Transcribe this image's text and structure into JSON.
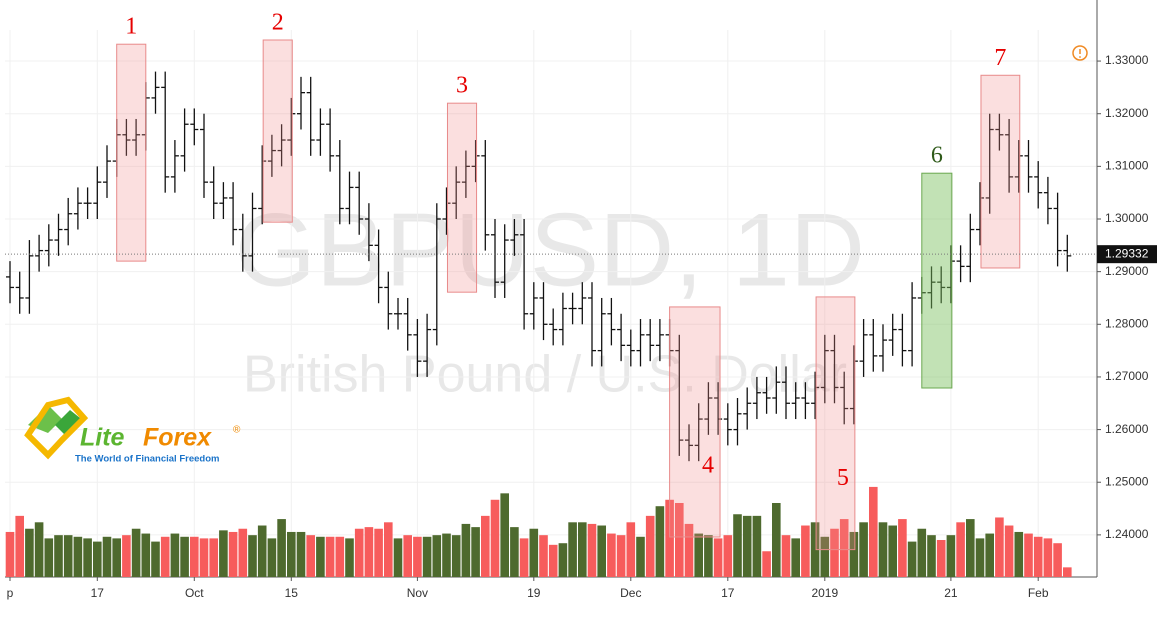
{
  "chart_data": {
    "type": "ohlc",
    "title": "GBPUSD, 1D",
    "subtitle": "British Pound / U.S. Dollar",
    "categories": [
      "p",
      null,
      null,
      null,
      null,
      null,
      null,
      null,
      null,
      "17",
      null,
      null,
      null,
      null,
      null,
      null,
      null,
      null,
      null,
      "Oct",
      null,
      null,
      null,
      null,
      null,
      null,
      null,
      null,
      null,
      "15",
      null,
      null,
      null,
      null,
      null,
      null,
      null,
      null,
      null,
      null,
      null,
      null,
      "Nov",
      null,
      null,
      null,
      null,
      null,
      null,
      null,
      null,
      null,
      null,
      null,
      "19",
      null,
      null,
      null,
      null,
      null,
      null,
      null,
      null,
      null,
      "Dec",
      null,
      null,
      null,
      null,
      null,
      null,
      null,
      null,
      null,
      "17",
      null,
      null,
      null,
      null,
      null,
      null,
      null,
      null,
      null,
      "2019",
      null,
      null,
      null,
      null,
      null,
      null,
      null,
      null,
      null,
      null,
      null,
      null,
      "21",
      null,
      null,
      null,
      null,
      null,
      null,
      null,
      null,
      "Feb",
      null,
      null,
      null
    ],
    "open": [
      1.289,
      1.287,
      1.285,
      1.293,
      1.294,
      1.296,
      1.298,
      1.301,
      1.303,
      1.303,
      1.307,
      1.311,
      1.316,
      1.315,
      1.316,
      1.323,
      1.325,
      1.308,
      1.312,
      1.318,
      1.317,
      1.307,
      1.303,
      1.304,
      1.298,
      1.293,
      1.302,
      1.311,
      1.313,
      1.315,
      1.32,
      1.324,
      1.315,
      1.318,
      1.312,
      1.302,
      1.306,
      1.3,
      1.295,
      1.287,
      1.282,
      1.282,
      1.278,
      1.273,
      1.279,
      1.3,
      1.303,
      1.307,
      1.31,
      1.312,
      1.297,
      1.288,
      1.296,
      1.297,
      1.282,
      1.285,
      1.28,
      1.279,
      1.283,
      1.283,
      1.285,
      1.275,
      1.282,
      1.279,
      1.276,
      1.275,
      1.278,
      1.276,
      1.278,
      1.275,
      1.258,
      1.257,
      1.262,
      1.266,
      1.262,
      1.26,
      1.263,
      1.265,
      1.267,
      1.266,
      1.269,
      1.265,
      1.266,
      1.265,
      1.268,
      1.275,
      1.268,
      1.264,
      1.273,
      1.278,
      1.274,
      1.277,
      1.279,
      1.275,
      1.285,
      1.286,
      1.288,
      1.287,
      1.292,
      1.291,
      1.298,
      1.304,
      1.317,
      1.316,
      1.308,
      1.312,
      1.308,
      1.305,
      1.302,
      1.294
    ],
    "high": [
      1.292,
      1.29,
      1.296,
      1.297,
      1.299,
      1.301,
      1.304,
      1.306,
      1.306,
      1.31,
      1.314,
      1.319,
      1.319,
      1.319,
      1.326,
      1.328,
      1.328,
      1.315,
      1.321,
      1.321,
      1.32,
      1.31,
      1.307,
      1.307,
      1.301,
      1.305,
      1.314,
      1.316,
      1.318,
      1.323,
      1.327,
      1.327,
      1.321,
      1.321,
      1.315,
      1.309,
      1.309,
      1.303,
      1.298,
      1.29,
      1.285,
      1.285,
      1.281,
      1.282,
      1.303,
      1.306,
      1.31,
      1.313,
      1.315,
      1.315,
      1.3,
      1.299,
      1.3,
      1.3,
      1.288,
      1.288,
      1.283,
      1.286,
      1.286,
      1.288,
      1.288,
      1.285,
      1.285,
      1.282,
      1.279,
      1.281,
      1.281,
      1.281,
      1.281,
      1.278,
      1.261,
      1.265,
      1.269,
      1.269,
      1.265,
      1.266,
      1.268,
      1.27,
      1.27,
      1.272,
      1.272,
      1.269,
      1.269,
      1.271,
      1.278,
      1.278,
      1.271,
      1.276,
      1.281,
      1.281,
      1.28,
      1.282,
      1.282,
      1.288,
      1.289,
      1.291,
      1.291,
      1.295,
      1.295,
      1.301,
      1.307,
      1.32,
      1.32,
      1.319,
      1.315,
      1.315,
      1.311,
      1.308,
      1.305,
      1.297
    ],
    "low": [
      1.284,
      1.282,
      1.282,
      1.29,
      1.291,
      1.293,
      1.295,
      1.298,
      1.3,
      1.3,
      1.304,
      1.308,
      1.312,
      1.312,
      1.313,
      1.32,
      1.305,
      1.305,
      1.309,
      1.314,
      1.304,
      1.3,
      1.3,
      1.295,
      1.29,
      1.29,
      1.299,
      1.308,
      1.31,
      1.312,
      1.317,
      1.312,
      1.312,
      1.309,
      1.299,
      1.299,
      1.297,
      1.292,
      1.284,
      1.279,
      1.279,
      1.275,
      1.27,
      1.27,
      1.276,
      1.297,
      1.3,
      1.304,
      1.307,
      1.294,
      1.285,
      1.285,
      1.293,
      1.279,
      1.279,
      1.277,
      1.276,
      1.276,
      1.28,
      1.28,
      1.272,
      1.272,
      1.276,
      1.273,
      1.272,
      1.272,
      1.273,
      1.273,
      1.272,
      1.255,
      1.254,
      1.254,
      1.259,
      1.259,
      1.257,
      1.257,
      1.26,
      1.262,
      1.263,
      1.263,
      1.262,
      1.262,
      1.262,
      1.262,
      1.265,
      1.265,
      1.261,
      1.261,
      1.27,
      1.271,
      1.271,
      1.274,
      1.272,
      1.272,
      1.282,
      1.283,
      1.284,
      1.284,
      1.288,
      1.288,
      1.295,
      1.301,
      1.313,
      1.305,
      1.305,
      1.305,
      1.302,
      1.299,
      1.291,
      1.29
    ],
    "close": [
      1.287,
      1.285,
      1.293,
      1.294,
      1.296,
      1.298,
      1.301,
      1.303,
      1.303,
      1.307,
      1.311,
      1.316,
      1.315,
      1.316,
      1.323,
      1.325,
      1.308,
      1.312,
      1.318,
      1.317,
      1.307,
      1.303,
      1.304,
      1.298,
      1.293,
      1.302,
      1.311,
      1.313,
      1.315,
      1.32,
      1.324,
      1.315,
      1.318,
      1.312,
      1.302,
      1.306,
      1.3,
      1.295,
      1.287,
      1.282,
      1.282,
      1.278,
      1.273,
      1.279,
      1.3,
      1.303,
      1.307,
      1.31,
      1.312,
      1.297,
      1.288,
      1.296,
      1.297,
      1.282,
      1.285,
      1.28,
      1.279,
      1.283,
      1.283,
      1.285,
      1.275,
      1.282,
      1.279,
      1.276,
      1.275,
      1.278,
      1.276,
      1.278,
      1.275,
      1.258,
      1.257,
      1.262,
      1.266,
      1.262,
      1.26,
      1.263,
      1.265,
      1.267,
      1.266,
      1.269,
      1.265,
      1.266,
      1.265,
      1.268,
      1.275,
      1.268,
      1.264,
      1.273,
      1.278,
      1.274,
      1.277,
      1.279,
      1.275,
      1.285,
      1.286,
      1.288,
      1.287,
      1.292,
      1.291,
      1.298,
      1.304,
      1.317,
      1.316,
      1.308,
      1.312,
      1.308,
      1.305,
      1.302,
      1.294,
      1.293
    ],
    "color": "#111111",
    "volume": [
      28,
      38,
      30,
      34,
      24,
      26,
      26,
      25,
      24,
      22,
      25,
      24,
      26,
      30,
      27,
      22,
      25,
      27,
      25,
      25,
      24,
      24,
      29,
      28,
      30,
      26,
      32,
      24,
      36,
      28,
      28,
      26,
      25,
      25,
      25,
      24,
      30,
      31,
      30,
      34,
      24,
      26,
      25,
      25,
      26,
      27,
      26,
      33,
      31,
      38,
      48,
      52,
      31,
      24,
      30,
      26,
      20,
      21,
      34,
      34,
      33,
      32,
      27,
      26,
      34,
      25,
      38,
      44,
      48,
      46,
      33,
      27,
      26,
      24,
      26,
      39,
      38,
      38,
      16,
      46,
      26,
      24,
      32,
      34,
      25,
      30,
      36,
      28,
      34,
      56,
      34,
      32,
      36,
      22,
      30,
      26,
      23,
      26,
      34,
      36,
      24,
      27,
      37,
      32,
      28,
      27,
      25,
      24,
      21,
      6
    ],
    "volume_lim": [
      0,
      340
    ],
    "volume_colors": {
      "up": "#4e6a2e",
      "down": "#f75c5c"
    },
    "ylim": [
      1.232,
      1.3359
    ],
    "yticks": [
      {
        "value": 1.24,
        "label": "1.24000"
      },
      {
        "value": 1.25,
        "label": "1.25000"
      },
      {
        "value": 1.26,
        "label": "1.26000"
      },
      {
        "value": 1.27,
        "label": "1.27000"
      },
      {
        "value": 1.28,
        "label": "1.28000"
      },
      {
        "value": 1.29,
        "label": "1.29000"
      },
      {
        "value": 1.3,
        "label": "1.30000"
      },
      {
        "value": 1.31,
        "label": "1.31000"
      },
      {
        "value": 1.32,
        "label": "1.32000"
      },
      {
        "value": 1.33,
        "label": "1.33000"
      }
    ],
    "grid": true,
    "last_price": 1.29332,
    "annotations": [
      {
        "label": "1",
        "x": [
          11.0,
          14.0
        ],
        "y": [
          1.292,
          1.3332
        ],
        "color": "#e60000"
      },
      {
        "label": "2",
        "x": [
          26.1,
          29.1
        ],
        "y": [
          1.2994,
          1.334
        ],
        "color": "#e60000"
      },
      {
        "label": "3",
        "x": [
          45.1,
          48.1
        ],
        "y": [
          1.2861,
          1.322
        ],
        "color": "#e60000"
      },
      {
        "label": "4",
        "x": [
          68.0,
          73.2
        ],
        "y": [
          1.2396,
          1.2833
        ],
        "color": "#e60000"
      },
      {
        "label": "5",
        "x": [
          83.1,
          87.1
        ],
        "y": [
          1.2372,
          1.2852
        ],
        "color": "#e60000"
      },
      {
        "label": "6",
        "x": [
          94.0,
          97.1
        ],
        "y": [
          1.2679,
          1.3087
        ],
        "color": "#2f5a1a"
      },
      {
        "label": "7",
        "x": [
          100.1,
          104.1
        ],
        "y": [
          1.2907,
          1.3273
        ],
        "color": "#e60000"
      }
    ]
  },
  "logo": {
    "name_parts": [
      "Lite",
      "Forex"
    ],
    "mark": "®",
    "tagline": "The World of Financial Freedom"
  }
}
